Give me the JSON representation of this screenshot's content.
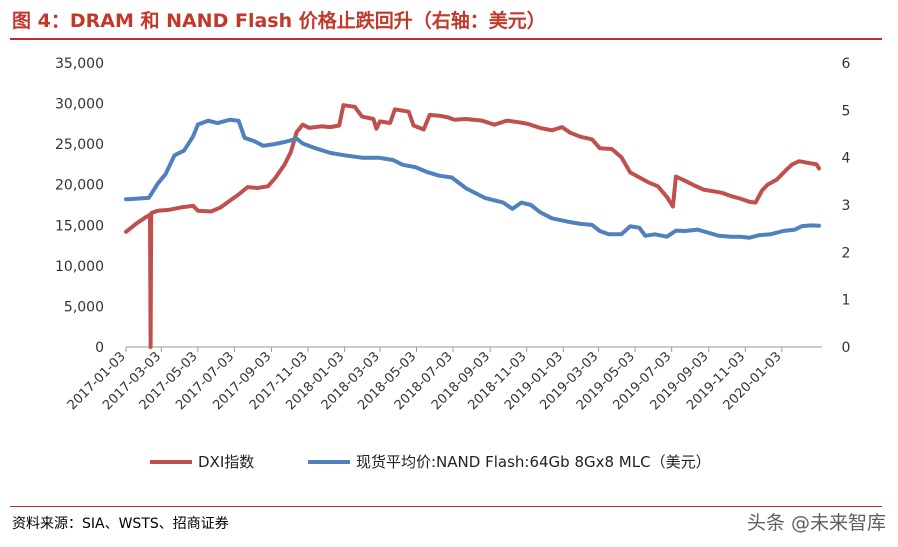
{
  "header": {
    "title": "图 4：DRAM 和 NAND Flash 价格止跌回升（右轴：美元）"
  },
  "footer": {
    "source": "资料来源：SIA、WSTS、招商证券",
    "watermark": "头条 @未来智库"
  },
  "chart_data": {
    "type": "line",
    "title": "",
    "x_type": "date",
    "x_ticks": [
      "2017-01-03",
      "2017-03-03",
      "2017-05-03",
      "2017-07-03",
      "2017-09-03",
      "2017-11-03",
      "2018-01-03",
      "2018-03-03",
      "2018-05-03",
      "2018-07-03",
      "2018-09-03",
      "2018-11-03",
      "2019-01-03",
      "2019-03-03",
      "2019-05-03",
      "2019-07-03",
      "2019-09-03",
      "2019-11-03",
      "2020-01-03"
    ],
    "x_range": [
      "2017-01-03",
      "2020-03-10"
    ],
    "y_left": {
      "ylim": [
        0,
        35000
      ],
      "ticks": [
        0,
        5000,
        10000,
        15000,
        20000,
        25000,
        30000,
        35000
      ],
      "tick_labels": [
        "0",
        "5,000",
        "10,000",
        "15,000",
        "20,000",
        "25,000",
        "30,000",
        "35,000"
      ]
    },
    "y_right": {
      "ylim": [
        0,
        6
      ],
      "ticks": [
        0,
        1,
        2,
        3,
        4,
        5,
        6
      ],
      "tick_labels": [
        "0",
        "1",
        "2",
        "3",
        "4",
        "5",
        "6"
      ]
    },
    "legend_position": "bottom",
    "colors": {
      "dxi": "#c0504d",
      "nand": "#4f81bd"
    },
    "series": [
      {
        "name": "DXI指数",
        "axis": "left",
        "color": "#c0504d",
        "points": [
          [
            "2017-01-03",
            14200
          ],
          [
            "2017-01-20",
            15200
          ],
          [
            "2017-02-05",
            16000
          ],
          [
            "2017-02-12",
            16300
          ],
          [
            "2017-02-13",
            0
          ],
          [
            "2017-02-14",
            16500
          ],
          [
            "2017-02-25",
            16800
          ],
          [
            "2017-03-15",
            16900
          ],
          [
            "2017-04-05",
            17200
          ],
          [
            "2017-04-25",
            17400
          ],
          [
            "2017-05-03",
            16800
          ],
          [
            "2017-05-25",
            16700
          ],
          [
            "2017-06-10",
            17200
          ],
          [
            "2017-06-25",
            18000
          ],
          [
            "2017-07-10",
            18800
          ],
          [
            "2017-07-25",
            19700
          ],
          [
            "2017-08-10",
            19600
          ],
          [
            "2017-08-28",
            19800
          ],
          [
            "2017-09-10",
            20900
          ],
          [
            "2017-09-25",
            22500
          ],
          [
            "2017-10-05",
            24000
          ],
          [
            "2017-10-15",
            26500
          ],
          [
            "2017-10-25",
            27400
          ],
          [
            "2017-11-05",
            27000
          ],
          [
            "2017-11-25",
            27200
          ],
          [
            "2017-12-10",
            27100
          ],
          [
            "2017-12-25",
            27300
          ],
          [
            "2018-01-01",
            29800
          ],
          [
            "2018-01-20",
            29600
          ],
          [
            "2018-02-01",
            28400
          ],
          [
            "2018-02-20",
            28100
          ],
          [
            "2018-02-25",
            26900
          ],
          [
            "2018-03-03",
            27800
          ],
          [
            "2018-03-20",
            27600
          ],
          [
            "2018-03-28",
            29300
          ],
          [
            "2018-04-20",
            29000
          ],
          [
            "2018-04-28",
            27300
          ],
          [
            "2018-05-15",
            26800
          ],
          [
            "2018-05-25",
            28600
          ],
          [
            "2018-06-10",
            28500
          ],
          [
            "2018-06-25",
            28300
          ],
          [
            "2018-07-05",
            28000
          ],
          [
            "2018-07-25",
            28100
          ],
          [
            "2018-08-20",
            27900
          ],
          [
            "2018-09-10",
            27400
          ],
          [
            "2018-10-01",
            27900
          ],
          [
            "2018-10-20",
            27700
          ],
          [
            "2018-11-05",
            27500
          ],
          [
            "2018-11-25",
            27000
          ],
          [
            "2018-12-15",
            26700
          ],
          [
            "2019-01-01",
            27100
          ],
          [
            "2019-01-15",
            26400
          ],
          [
            "2019-02-01",
            25900
          ],
          [
            "2019-02-20",
            25600
          ],
          [
            "2019-03-05",
            24500
          ],
          [
            "2019-03-25",
            24400
          ],
          [
            "2019-04-10",
            23400
          ],
          [
            "2019-04-25",
            21500
          ],
          [
            "2019-05-10",
            20900
          ],
          [
            "2019-05-25",
            20300
          ],
          [
            "2019-06-10",
            19800
          ],
          [
            "2019-06-25",
            18500
          ],
          [
            "2019-07-05",
            17300
          ],
          [
            "2019-07-10",
            21000
          ],
          [
            "2019-07-25",
            20500
          ],
          [
            "2019-08-10",
            19900
          ],
          [
            "2019-08-25",
            19400
          ],
          [
            "2019-09-10",
            19200
          ],
          [
            "2019-09-25",
            19000
          ],
          [
            "2019-10-10",
            18600
          ],
          [
            "2019-10-25",
            18300
          ],
          [
            "2019-11-10",
            17900
          ],
          [
            "2019-11-20",
            17800
          ],
          [
            "2019-12-01",
            19300
          ],
          [
            "2019-12-10",
            20000
          ],
          [
            "2019-12-25",
            20600
          ],
          [
            "2020-01-10",
            21800
          ],
          [
            "2020-01-20",
            22500
          ],
          [
            "2020-02-01",
            22900
          ],
          [
            "2020-02-15",
            22700
          ],
          [
            "2020-03-01",
            22500
          ],
          [
            "2020-03-05",
            22000
          ]
        ]
      },
      {
        "name": "现货平均价:NAND Flash:64Gb 8Gx8 MLC（美元）",
        "axis": "right",
        "color": "#4f81bd",
        "points": [
          [
            "2017-01-03",
            3.12
          ],
          [
            "2017-02-10",
            3.15
          ],
          [
            "2017-02-25",
            3.45
          ],
          [
            "2017-03-10",
            3.65
          ],
          [
            "2017-03-25",
            4.05
          ],
          [
            "2017-04-10",
            4.15
          ],
          [
            "2017-04-25",
            4.45
          ],
          [
            "2017-05-03",
            4.7
          ],
          [
            "2017-05-20",
            4.78
          ],
          [
            "2017-06-05",
            4.73
          ],
          [
            "2017-06-25",
            4.8
          ],
          [
            "2017-07-10",
            4.78
          ],
          [
            "2017-07-20",
            4.42
          ],
          [
            "2017-08-05",
            4.35
          ],
          [
            "2017-08-20",
            4.25
          ],
          [
            "2017-09-05",
            4.28
          ],
          [
            "2017-09-25",
            4.33
          ],
          [
            "2017-10-15",
            4.4
          ],
          [
            "2017-10-25",
            4.3
          ],
          [
            "2017-11-15",
            4.2
          ],
          [
            "2017-12-10",
            4.1
          ],
          [
            "2018-01-03",
            4.05
          ],
          [
            "2018-02-01",
            4.0
          ],
          [
            "2018-03-01",
            4.0
          ],
          [
            "2018-03-25",
            3.95
          ],
          [
            "2018-04-10",
            3.85
          ],
          [
            "2018-05-01",
            3.8
          ],
          [
            "2018-05-20",
            3.7
          ],
          [
            "2018-06-10",
            3.62
          ],
          [
            "2018-07-01",
            3.58
          ],
          [
            "2018-07-25",
            3.35
          ],
          [
            "2018-08-25",
            3.15
          ],
          [
            "2018-09-25",
            3.05
          ],
          [
            "2018-10-10",
            2.92
          ],
          [
            "2018-10-25",
            3.05
          ],
          [
            "2018-11-10",
            3.0
          ],
          [
            "2018-11-25",
            2.85
          ],
          [
            "2018-12-15",
            2.72
          ],
          [
            "2019-01-10",
            2.65
          ],
          [
            "2019-02-01",
            2.6
          ],
          [
            "2019-02-20",
            2.58
          ],
          [
            "2019-03-05",
            2.45
          ],
          [
            "2019-03-20",
            2.38
          ],
          [
            "2019-04-10",
            2.38
          ],
          [
            "2019-04-25",
            2.55
          ],
          [
            "2019-05-10",
            2.52
          ],
          [
            "2019-05-20",
            2.35
          ],
          [
            "2019-06-05",
            2.38
          ],
          [
            "2019-06-25",
            2.33
          ],
          [
            "2019-07-10",
            2.46
          ],
          [
            "2019-07-25",
            2.45
          ],
          [
            "2019-08-15",
            2.48
          ],
          [
            "2019-09-01",
            2.42
          ],
          [
            "2019-09-20",
            2.35
          ],
          [
            "2019-10-10",
            2.33
          ],
          [
            "2019-10-25",
            2.33
          ],
          [
            "2019-11-10",
            2.31
          ],
          [
            "2019-11-25",
            2.36
          ],
          [
            "2019-12-15",
            2.38
          ],
          [
            "2020-01-05",
            2.45
          ],
          [
            "2020-01-25",
            2.48
          ],
          [
            "2020-02-05",
            2.55
          ],
          [
            "2020-02-20",
            2.57
          ],
          [
            "2020-03-05",
            2.56
          ]
        ]
      }
    ]
  }
}
